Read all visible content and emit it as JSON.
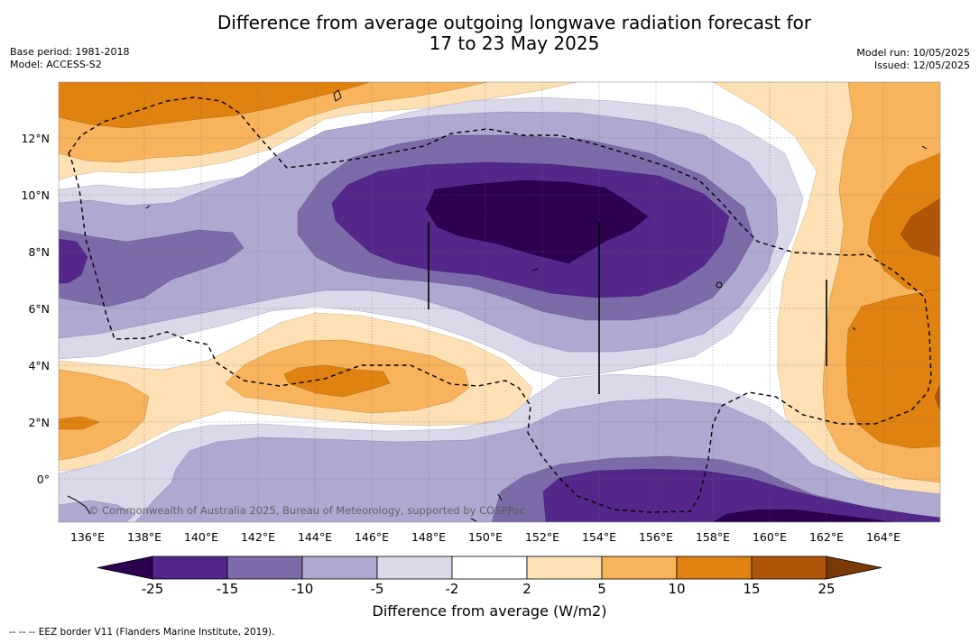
{
  "header": {
    "title_line1": "Difference from average outgoing longwave radiation forecast for",
    "title_line2": "17 to 23 May 2025",
    "base_period": "Base period: 1981-2018",
    "model": "Model: ACCESS-S2",
    "model_run": "Model run: 10/05/2025",
    "issued": "Issued: 12/05/2025"
  },
  "map": {
    "lon_ticks": [
      "136°E",
      "138°E",
      "140°E",
      "142°E",
      "144°E",
      "146°E",
      "148°E",
      "150°E",
      "152°E",
      "154°E",
      "156°E",
      "158°E",
      "160°E",
      "162°E",
      "164°E"
    ],
    "lat_ticks": [
      "12°N",
      "10°N",
      "8°N",
      "6°N",
      "4°N",
      "2°N",
      "0°"
    ],
    "credit": "© Commonwealth of Australia 2025, Bureau of Meteorology, supported by COSPPac"
  },
  "colorbar": {
    "ticks": [
      "-25",
      "-15",
      "-10",
      "-5",
      "-2",
      "2",
      "5",
      "10",
      "15",
      "25"
    ],
    "colors": [
      "#2d0050",
      "#54288a",
      "#7d6ba9",
      "#afa8d0",
      "#d9d9ea",
      "#ffffff",
      "#fde0b4",
      "#f8b45d",
      "#e0820f",
      "#b15508",
      "#7a3a06"
    ],
    "title": "Difference from average (W/m2)"
  },
  "footer": {
    "note": "-- -- -- EEZ border V11 (Flanders Marine Institute, 2019)."
  }
}
